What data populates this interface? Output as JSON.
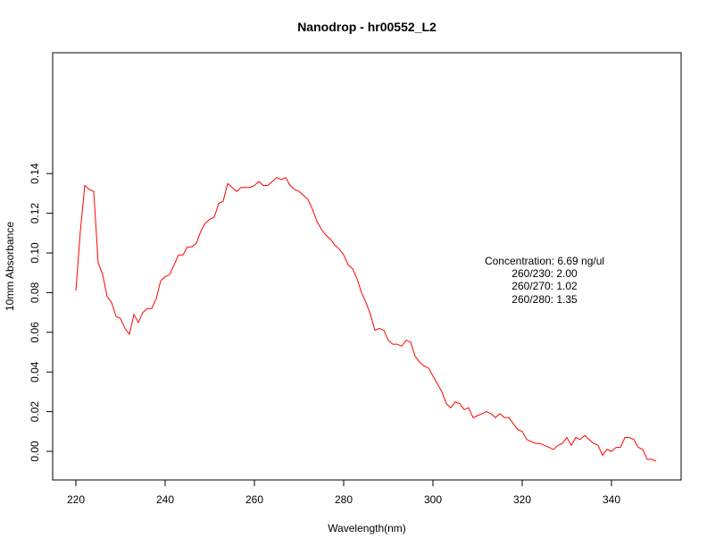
{
  "chart_data": {
    "type": "line",
    "title": "Nanodrop - hr00552_L2",
    "xlabel": "Wavelength(nm)",
    "ylabel": "10mm Absorbance",
    "xlim": [
      215,
      350
    ],
    "ylim": [
      -0.009,
      0.143
    ],
    "grid": false,
    "x_ticks": [
      220,
      240,
      260,
      280,
      300,
      320,
      340
    ],
    "x_tick_labels": [
      "220",
      "240",
      "260",
      "280",
      "300",
      "320",
      "340"
    ],
    "y_ticks": [
      0.0,
      0.02,
      0.04,
      0.06,
      0.08,
      0.1,
      0.12,
      0.14
    ],
    "y_tick_labels": [
      "0.00",
      "0.02",
      "0.04",
      "0.06",
      "0.08",
      "0.10",
      "0.12",
      "0.14"
    ],
    "series": [
      {
        "color": "#ff0000",
        "x": [
          220,
          221,
          222,
          223,
          224,
          225,
          226,
          227,
          228,
          229,
          230,
          231,
          232,
          233,
          234,
          235,
          236,
          237,
          238,
          239,
          240,
          241,
          242,
          243,
          244,
          245,
          246,
          247,
          248,
          249,
          250,
          251,
          252,
          253,
          254,
          255,
          256,
          257,
          258,
          259,
          260,
          261,
          262,
          263,
          264,
          265,
          266,
          267,
          268,
          269,
          270,
          271,
          272,
          273,
          274,
          275,
          276,
          277,
          278,
          279,
          280,
          281,
          282,
          283,
          284,
          285,
          286,
          287,
          288,
          289,
          290,
          291,
          292,
          293,
          294,
          295,
          296,
          297,
          298,
          299,
          300,
          301,
          302,
          303,
          304,
          305,
          306,
          307,
          308,
          309,
          310,
          311,
          312,
          313,
          314,
          315,
          316,
          317,
          318,
          319,
          320,
          321,
          322,
          323,
          324,
          325,
          326,
          327,
          328,
          329,
          330,
          331,
          332,
          333,
          334,
          335,
          336,
          337,
          338,
          339,
          340,
          341,
          342,
          343,
          344,
          345,
          346,
          347,
          348,
          349,
          350
        ],
        "y": [
          0.081,
          0.111,
          0.134,
          0.132,
          0.131,
          0.095,
          0.089,
          0.078,
          0.075,
          0.068,
          0.067,
          0.062,
          0.059,
          0.069,
          0.065,
          0.07,
          0.072,
          0.072,
          0.077,
          0.086,
          0.088,
          0.089,
          0.094,
          0.099,
          0.099,
          0.103,
          0.103,
          0.105,
          0.111,
          0.115,
          0.117,
          0.118,
          0.125,
          0.126,
          0.135,
          0.133,
          0.131,
          0.133,
          0.133,
          0.133,
          0.134,
          0.136,
          0.134,
          0.134,
          0.136,
          0.138,
          0.137,
          0.138,
          0.134,
          0.132,
          0.131,
          0.129,
          0.127,
          0.122,
          0.116,
          0.112,
          0.109,
          0.107,
          0.104,
          0.102,
          0.099,
          0.094,
          0.092,
          0.087,
          0.08,
          0.075,
          0.069,
          0.061,
          0.062,
          0.061,
          0.056,
          0.054,
          0.054,
          0.053,
          0.056,
          0.055,
          0.048,
          0.045,
          0.043,
          0.042,
          0.038,
          0.034,
          0.03,
          0.024,
          0.022,
          0.025,
          0.024,
          0.021,
          0.022,
          0.017,
          0.018,
          0.019,
          0.02,
          0.019,
          0.017,
          0.019,
          0.017,
          0.017,
          0.014,
          0.011,
          0.01,
          0.006,
          0.005,
          0.004,
          0.004,
          0.003,
          0.002,
          0.001,
          0.003,
          0.004,
          0.007,
          0.003,
          0.007,
          0.006,
          0.008,
          0.006,
          0.004,
          0.003,
          -0.002,
          0.001,
          0.0,
          0.002,
          0.002,
          0.007,
          0.007,
          0.006,
          0.002,
          0.001,
          -0.004,
          -0.004,
          -0.005
        ]
      }
    ],
    "annotations": [
      "Concentration: 6.69 ng/ul",
      "260/230: 2.00",
      "260/270: 1.02",
      "260/280: 1.35"
    ]
  }
}
